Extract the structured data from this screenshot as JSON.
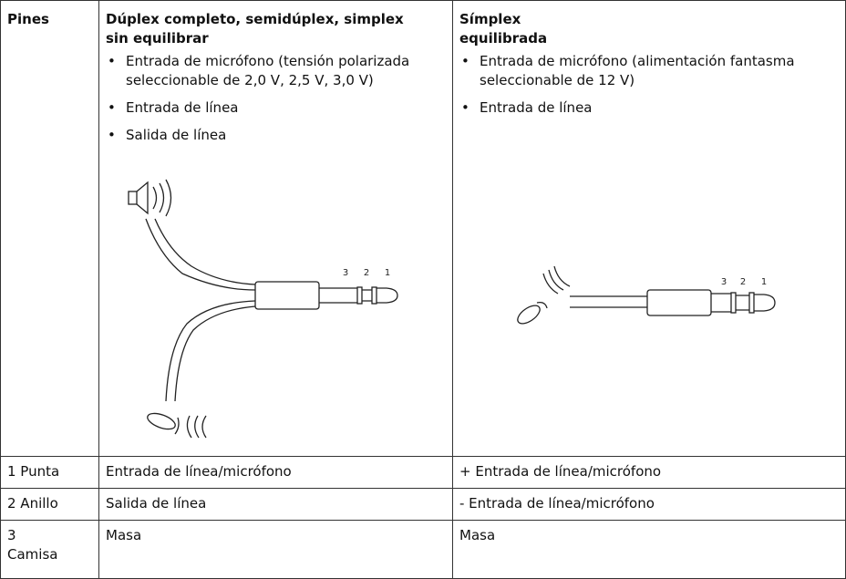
{
  "table": {
    "header": {
      "pins": "Pines",
      "columns": [
        {
          "title_lines": [
            "Dúplex completo, semidúplex, simplex",
            "sin equilibrar"
          ],
          "bullets": [
            "Entrada de micrófono (tensión polarizada seleccionable de 2,0 V, 2,5 V, 3,0 V)",
            "Entrada de línea",
            "Salida de línea"
          ],
          "pin_labels": [
            "3",
            "2",
            "1"
          ]
        },
        {
          "title_lines": [
            "Símplex",
            "equilibrada"
          ],
          "bullets": [
            "Entrada de micrófono (alimentación fantasma seleccionable de 12 V)",
            "Entrada de línea"
          ],
          "pin_labels": [
            "3",
            "2",
            "1"
          ]
        }
      ]
    },
    "rows": [
      [
        "1 Punta",
        "Entrada de línea/micrófono",
        "+ Entrada de línea/micrófono"
      ],
      [
        "2 Anillo",
        "Salida de línea",
        "- Entrada de línea/micrófono"
      ],
      [
        "3 Camisa",
        "Masa",
        "Masa"
      ]
    ]
  }
}
